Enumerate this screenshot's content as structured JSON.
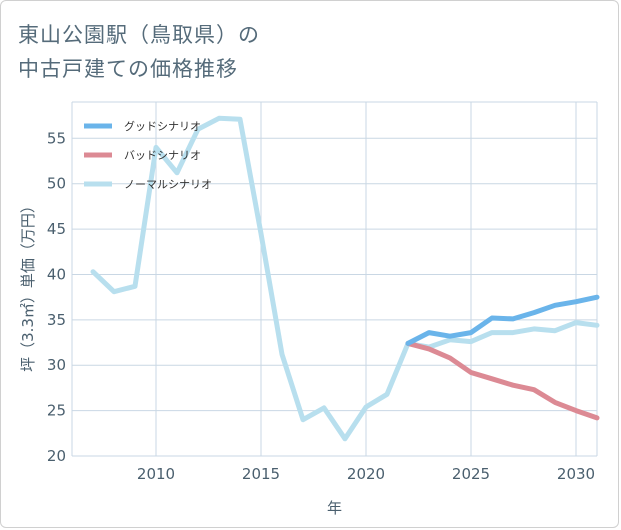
{
  "page": {
    "title_line1": "東山公園駅（鳥取県）の",
    "title_line2": "中古戸建ての価格推移"
  },
  "colors": {
    "good": "#6ab4ea",
    "bad": "#dc8a94",
    "normal": "#b8dfee",
    "grid": "#c9d7e4",
    "tick": "#4a5f6e"
  },
  "chart_data": {
    "type": "line",
    "title": "東山公園駅（鳥取県）の中古戸建ての価格推移",
    "xlabel": "年",
    "ylabel": "坪（3.3㎡）単価（万円）",
    "xlim": [
      2006,
      2031
    ],
    "ylim": [
      20,
      59
    ],
    "xticks": [
      2010,
      2015,
      2020,
      2025,
      2030
    ],
    "yticks": [
      20,
      25,
      30,
      35,
      40,
      45,
      50,
      55
    ],
    "legend_position": "top-left",
    "series": [
      {
        "name": "グッドシナリオ",
        "key": "good",
        "x": [
          2022,
          2023,
          2024,
          2025,
          2026,
          2027,
          2028,
          2029,
          2030,
          2031
        ],
        "y": [
          32.4,
          33.6,
          33.2,
          33.6,
          35.2,
          35.1,
          35.8,
          36.6,
          37.0,
          37.5
        ]
      },
      {
        "name": "バッドシナリオ",
        "key": "bad",
        "x": [
          2022,
          2023,
          2024,
          2025,
          2026,
          2027,
          2028,
          2029,
          2030,
          2031
        ],
        "y": [
          32.4,
          31.8,
          30.8,
          29.2,
          28.5,
          27.8,
          27.3,
          25.9,
          25.0,
          24.2
        ]
      },
      {
        "name": "ノーマルシナリオ",
        "key": "normal",
        "x": [
          2007,
          2008,
          2009,
          2010,
          2011,
          2012,
          2013,
          2014,
          2015,
          2016,
          2017,
          2018,
          2019,
          2020,
          2021,
          2022,
          2023,
          2024,
          2025,
          2026,
          2027,
          2028,
          2029,
          2030,
          2031
        ],
        "y": [
          40.3,
          38.1,
          38.7,
          54.0,
          51.2,
          56.0,
          57.2,
          57.1,
          44.5,
          31.2,
          24.0,
          25.3,
          21.9,
          25.4,
          26.8,
          32.4,
          32.0,
          32.8,
          32.6,
          33.6,
          33.6,
          34.0,
          33.8,
          34.7,
          34.4
        ]
      }
    ]
  }
}
